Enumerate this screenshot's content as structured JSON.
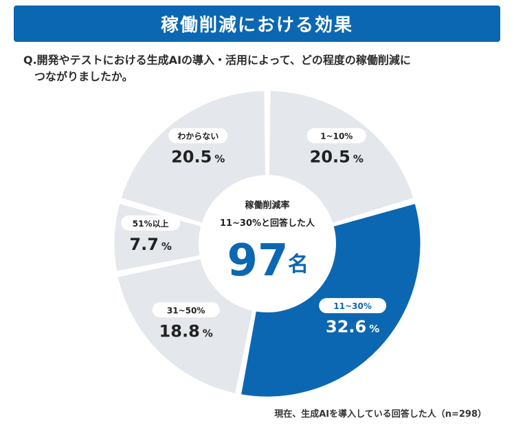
{
  "header": {
    "title": "稼働削減における効果"
  },
  "question": {
    "line1": "Q.開発やテストにおける生成AIの導入・活用によって、どの程度の稼働削減に",
    "line2": "つながりましたか。"
  },
  "center": {
    "line1": "稼働削減率",
    "line2": "11~30%と回答した人",
    "number": "97",
    "unit": "名"
  },
  "footnote": "現在、生成AIを導入している回答した人（n=298）",
  "colors": {
    "brand": "#0b67b2",
    "slice": "#e4e7eb",
    "highlight": "#0b67b2",
    "text": "#222222"
  },
  "chart_data": {
    "type": "pie",
    "title": "稼働削減における効果",
    "unit": "%",
    "slices": [
      {
        "label": "1~10%",
        "value": 20.5,
        "display": "20.5",
        "highlight": false
      },
      {
        "label": "11~30%",
        "value": 32.6,
        "display": "32.6",
        "highlight": true
      },
      {
        "label": "31~50%",
        "value": 18.8,
        "display": "18.8",
        "highlight": false
      },
      {
        "label": "51%以上",
        "value": 7.7,
        "display": "7.7",
        "highlight": false
      },
      {
        "label": "わからない",
        "value": 20.5,
        "display": "20.5",
        "highlight": false
      }
    ]
  }
}
